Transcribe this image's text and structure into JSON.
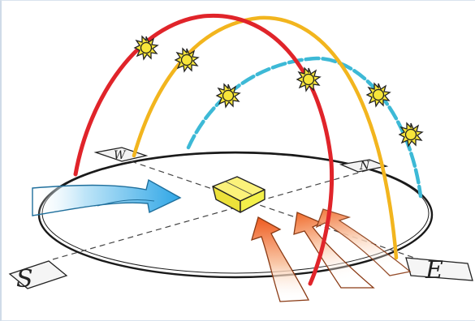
{
  "diagram": {
    "compass": {
      "west": "W",
      "north": "N",
      "south": "S",
      "east": "E"
    },
    "colors": {
      "summer_path": "#e0242a",
      "equinox_path": "#f2b51e",
      "winter_path": "#3db9d6",
      "sun_fill": "#f7e53a",
      "house_fill": "#f3f04a",
      "cool_wind": "#2fa6e6",
      "warm_wind": "#ef6a2a"
    },
    "icons": [
      "sun-icon",
      "house-icon",
      "wind-arrow-icon"
    ]
  }
}
